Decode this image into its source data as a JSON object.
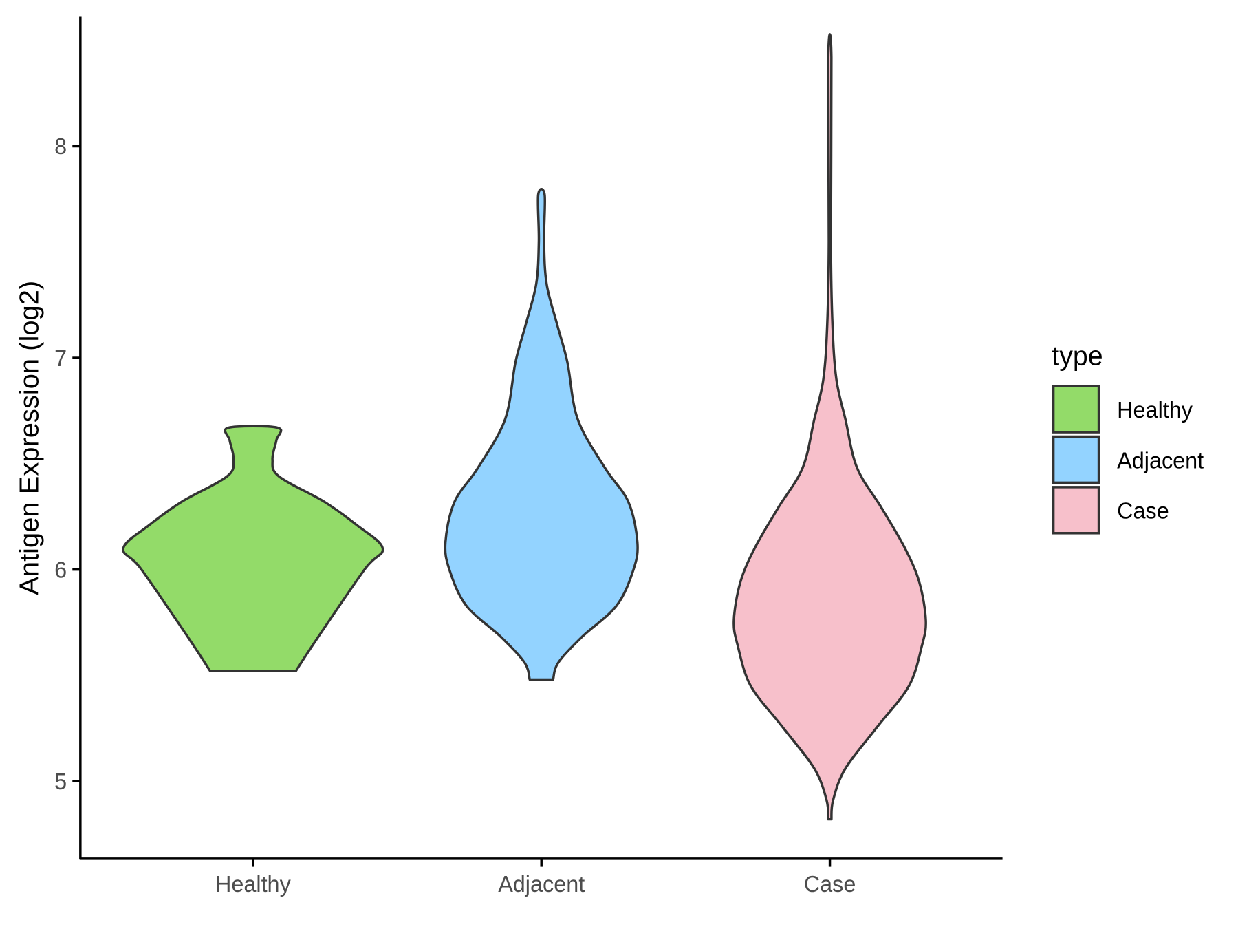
{
  "chart_data": {
    "type": "violin",
    "title": "",
    "xlabel": "",
    "ylabel": "Antigen Expression (log2)",
    "categories": [
      "Healthy",
      "Adjacent",
      "Case"
    ],
    "ylim": [
      4.63,
      8.61
    ],
    "yticks": [
      5,
      6,
      7,
      8
    ],
    "grid": false,
    "legend": {
      "title": "type",
      "placement": "right",
      "entries": [
        "Healthy",
        "Adjacent",
        "Case"
      ]
    },
    "colors": {
      "Healthy": "#93DB69",
      "Adjacent": "#93D3FF",
      "Case": "#F7C0CB",
      "outline": "#333333"
    },
    "series": [
      {
        "name": "Healthy",
        "profile": [
          [
            5.52,
            0.33
          ],
          [
            5.67,
            0.49
          ],
          [
            6.0,
            0.86
          ],
          [
            6.1,
            1.0
          ],
          [
            6.21,
            0.8
          ],
          [
            6.32,
            0.55
          ],
          [
            6.44,
            0.2
          ],
          [
            6.52,
            0.15
          ],
          [
            6.61,
            0.18
          ],
          [
            6.67,
            0.19
          ]
        ]
      },
      {
        "name": "Adjacent",
        "profile": [
          [
            5.48,
            0.09
          ],
          [
            5.56,
            0.13
          ],
          [
            5.68,
            0.31
          ],
          [
            5.83,
            0.58
          ],
          [
            6.0,
            0.71
          ],
          [
            6.13,
            0.74
          ],
          [
            6.32,
            0.67
          ],
          [
            6.48,
            0.49
          ],
          [
            6.71,
            0.28
          ],
          [
            6.98,
            0.2
          ],
          [
            7.16,
            0.12
          ],
          [
            7.35,
            0.04
          ],
          [
            7.55,
            0.02
          ],
          [
            7.77,
            0.025
          ]
        ]
      },
      {
        "name": "Case",
        "profile": [
          [
            4.82,
            0.012
          ],
          [
            4.91,
            0.025
          ],
          [
            5.06,
            0.12
          ],
          [
            5.26,
            0.37
          ],
          [
            5.45,
            0.61
          ],
          [
            5.64,
            0.71
          ],
          [
            5.76,
            0.74
          ],
          [
            5.94,
            0.69
          ],
          [
            6.1,
            0.58
          ],
          [
            6.29,
            0.4
          ],
          [
            6.48,
            0.21
          ],
          [
            6.71,
            0.12
          ],
          [
            6.9,
            0.05
          ],
          [
            7.16,
            0.02
          ],
          [
            7.55,
            0.008
          ],
          [
            8.42,
            0.012
          ]
        ]
      }
    ]
  }
}
